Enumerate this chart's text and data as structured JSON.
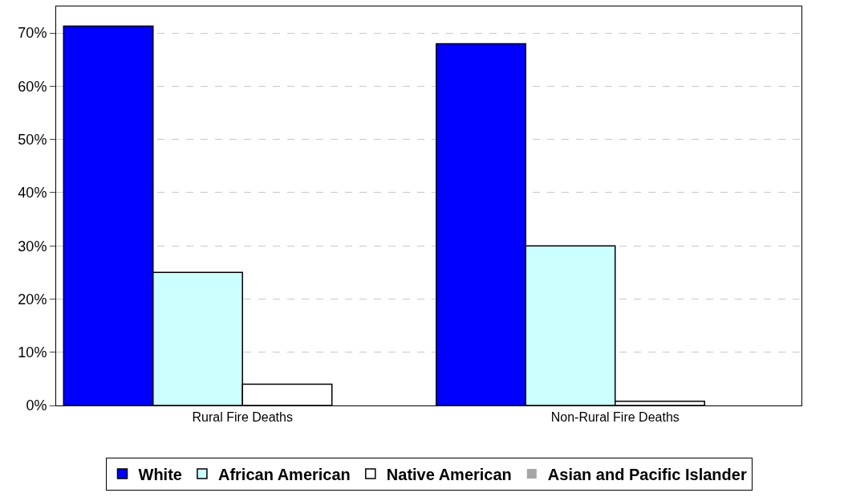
{
  "chart_data": {
    "type": "bar",
    "categories": [
      "Rural Fire Deaths",
      "Non-Rural Fire Deaths"
    ],
    "series": [
      {
        "name": "White",
        "color": "#0000ff",
        "values": [
          71.3,
          68
        ]
      },
      {
        "name": "African American",
        "color": "#ccffff",
        "values": [
          25,
          30
        ]
      },
      {
        "name": "Native American",
        "color": "#ffffff",
        "values": [
          4,
          0.8
        ]
      },
      {
        "name": "Asian and Pacific Islander",
        "color": "#a6a6a6",
        "values": [
          0,
          0
        ]
      }
    ],
    "ylim": [
      0,
      75
    ],
    "yticks": [
      {
        "value": 0,
        "label": "0%"
      },
      {
        "value": 10,
        "label": "10%"
      },
      {
        "value": 20,
        "label": "20%"
      },
      {
        "value": 30,
        "label": "30%"
      },
      {
        "value": 40,
        "label": "40%"
      },
      {
        "value": 50,
        "label": "50%"
      },
      {
        "value": 60,
        "label": "60%"
      },
      {
        "value": 70,
        "label": "70%"
      }
    ],
    "grid": "y",
    "legend": "bottom"
  }
}
